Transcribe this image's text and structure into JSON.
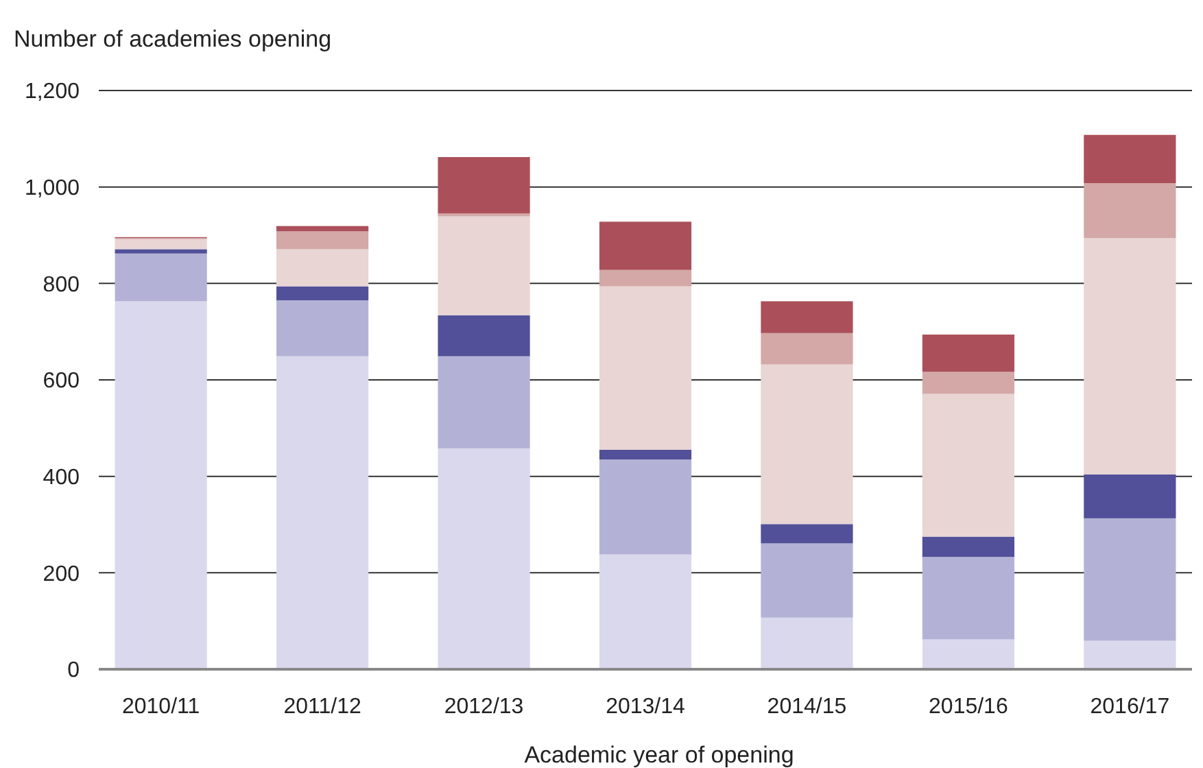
{
  "chart_data": {
    "type": "bar",
    "stacked": true,
    "ylabel": "Number of academies opening",
    "xlabel": "Academic year of opening",
    "categories": [
      "2010/11",
      "2011/12",
      "2012/13",
      "2013/14",
      "2014/15",
      "2015/16",
      "2016/17"
    ],
    "series": [
      {
        "color": "#dad8ec",
        "values": [
          763,
          649,
          458,
          238,
          107,
          62,
          59
        ]
      },
      {
        "color": "#b3b2d6",
        "values": [
          99,
          116,
          191,
          197,
          154,
          171,
          254
        ]
      },
      {
        "color": "#525099",
        "values": [
          9,
          29,
          85,
          20,
          40,
          42,
          91
        ]
      },
      {
        "color": "#e8d5d4",
        "values": [
          21,
          77,
          205,
          339,
          331,
          296,
          490
        ]
      },
      {
        "color": "#d3a8a6",
        "values": [
          2,
          37,
          6,
          34,
          65,
          46,
          114
        ]
      },
      {
        "color": "#ab505a",
        "values": [
          2,
          11,
          117,
          100,
          66,
          77,
          100
        ]
      }
    ],
    "ylim": [
      0,
      1200
    ],
    "yticks": [
      0,
      {
        "value": 200,
        "label": "200"
      },
      {
        "value": 400,
        "label": "400"
      },
      {
        "value": 600,
        "label": "600"
      },
      {
        "value": 800,
        "label": "800"
      },
      {
        "value": 1000,
        "label": "1,000"
      },
      {
        "value": 1200,
        "label": "1,200"
      }
    ],
    "grid": "y"
  }
}
